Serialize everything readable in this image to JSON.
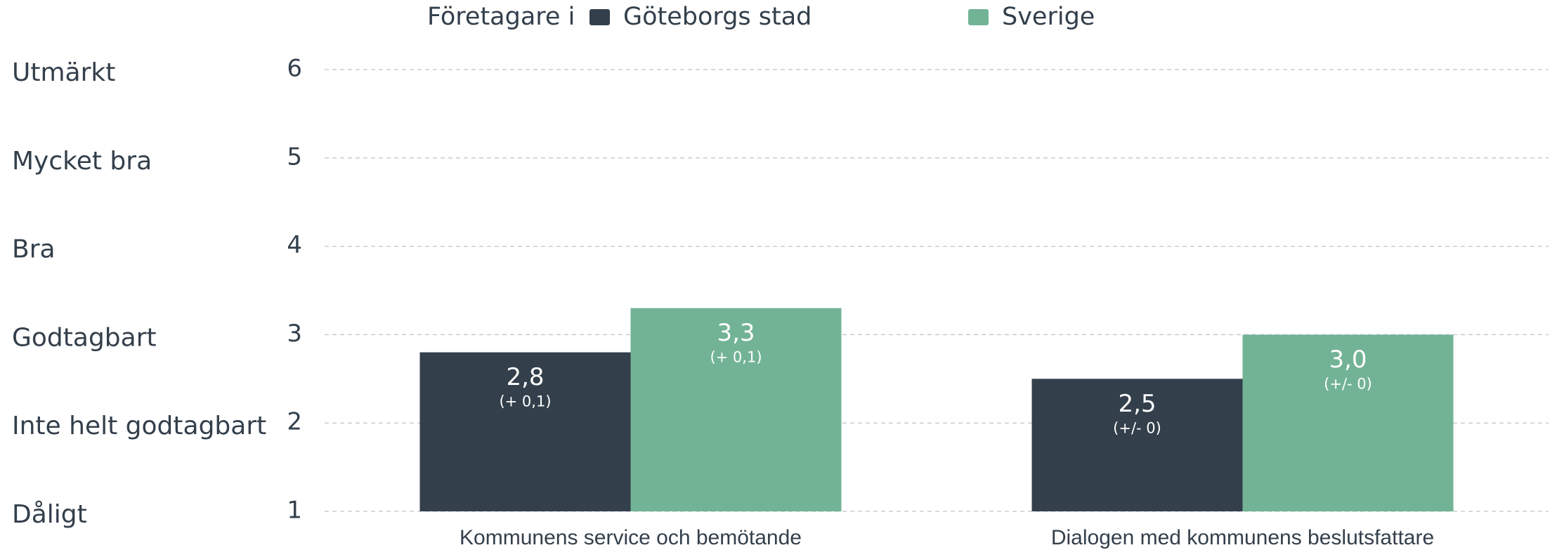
{
  "chart_data": {
    "type": "bar",
    "legend_title": "Företagare i",
    "categories": [
      "Kommunens service och bemötande",
      "Dialogen med kommunens beslutsfattare"
    ],
    "series": [
      {
        "name": "Göteborgs stad",
        "color": "#333f4b",
        "values": [
          2.8,
          2.5
        ],
        "value_labels": [
          "2,8",
          "2,5"
        ],
        "change_labels": [
          "(+ 0,1)",
          "(+/- 0)"
        ]
      },
      {
        "name": "Sverige",
        "color": "#72b396",
        "values": [
          3.3,
          3.0
        ],
        "value_labels": [
          "3,3",
          "3,0"
        ],
        "change_labels": [
          "(+ 0,1)",
          "(+/- 0)"
        ]
      }
    ],
    "ylim": [
      1,
      6
    ],
    "yticks": [
      1,
      2,
      3,
      4,
      5,
      6
    ],
    "ytick_names": [
      "Dåligt",
      "Inte helt godtagbart",
      "Godtagbart",
      "Bra",
      "Mycket bra",
      "Utmärkt"
    ],
    "grid": true
  }
}
